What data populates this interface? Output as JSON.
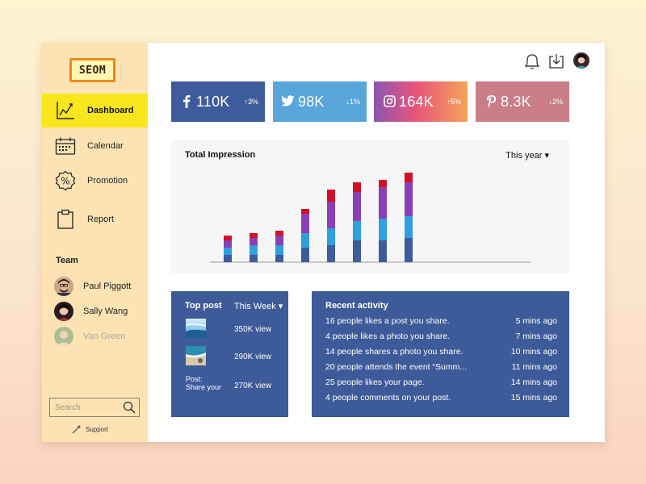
{
  "brand": {
    "logo_text": "SEOM",
    "accent": "#f9e61c",
    "sidebar_bg": "#fde3b3"
  },
  "sidebar": {
    "nav": [
      {
        "label": "Dashboard",
        "icon": "line-chart-icon",
        "active": true
      },
      {
        "label": "Calendar",
        "icon": "calendar-icon",
        "active": false
      },
      {
        "label": "Promotion",
        "icon": "percent-badge-icon",
        "active": false
      },
      {
        "label": "Report",
        "icon": "clipboard-icon",
        "active": false
      }
    ],
    "team_title": "Team",
    "team": [
      {
        "name": "Paul Piggott",
        "faded": false
      },
      {
        "name": "Sally Wang",
        "faded": false
      },
      {
        "name": "Van Green",
        "faded": true
      }
    ],
    "search_placeholder": "Search",
    "support_label": "Support"
  },
  "topbar": {
    "icons": [
      "bell-icon",
      "download-icon",
      "user-avatar"
    ]
  },
  "stats": [
    {
      "network": "facebook",
      "icon": "facebook-icon",
      "value": "110K",
      "change": "↑3%",
      "color": "#3e5b9b"
    },
    {
      "network": "twitter",
      "icon": "twitter-icon",
      "value": "98K",
      "change": "↓1%",
      "color": "#58a5da"
    },
    {
      "network": "instagram",
      "icon": "instagram-icon",
      "value": "164K",
      "change": "↑5%",
      "color": "#e8557a"
    },
    {
      "network": "pinterest",
      "icon": "pinterest-icon",
      "value": "8.3K",
      "change": "↓2%",
      "color": "#c97d86"
    }
  ],
  "impression": {
    "title": "Total Impression",
    "range": "This year ▾"
  },
  "chart_data": {
    "type": "bar",
    "stacked": true,
    "title": "Total Impression",
    "categories": [
      "",
      "",
      "",
      "",
      "",
      "",
      "",
      ""
    ],
    "series": [
      {
        "color": "#3e5b9b",
        "values": [
          3,
          3,
          3,
          6,
          7,
          9,
          9,
          10
        ]
      },
      {
        "color": "#2f9fe0",
        "values": [
          3,
          4,
          4,
          6,
          7,
          8,
          9,
          9
        ]
      },
      {
        "color": "#8a3fb5",
        "values": [
          3,
          3,
          4,
          8,
          11,
          12,
          13,
          14
        ]
      },
      {
        "color": "#d0102a",
        "values": [
          2,
          2,
          2,
          2,
          5,
          4,
          3,
          4
        ]
      }
    ],
    "ylim": [
      0,
      40
    ],
    "grid": false,
    "legend": "none"
  },
  "top_post": {
    "title": "Top post",
    "range": "This Week ▾",
    "posts": [
      {
        "kind": "image",
        "thumb": "sea-sky-thumbnail",
        "views": "350K view"
      },
      {
        "kind": "image",
        "thumb": "beach-thumbnail",
        "views": "290K view"
      },
      {
        "kind": "text",
        "text_line1": "Post:",
        "text_line2": "Share your",
        "views": "270K view"
      }
    ]
  },
  "recent_activity": {
    "title": "Recent activity",
    "items": [
      {
        "text": "16 people likes a post you share.",
        "time": "5 mins ago"
      },
      {
        "text": "4 people likes a photo you share.",
        "time": "7 mins ago"
      },
      {
        "text": "14 people shares a photo you share.",
        "time": "10 mins ago"
      },
      {
        "text": "20 people attends the event “Summ...",
        "time": "11 mins ago"
      },
      {
        "text": "25 people likes your page.",
        "time": "14 mins ago"
      },
      {
        "text": "4 people comments on your post.",
        "time": "15 mins ago"
      }
    ]
  }
}
